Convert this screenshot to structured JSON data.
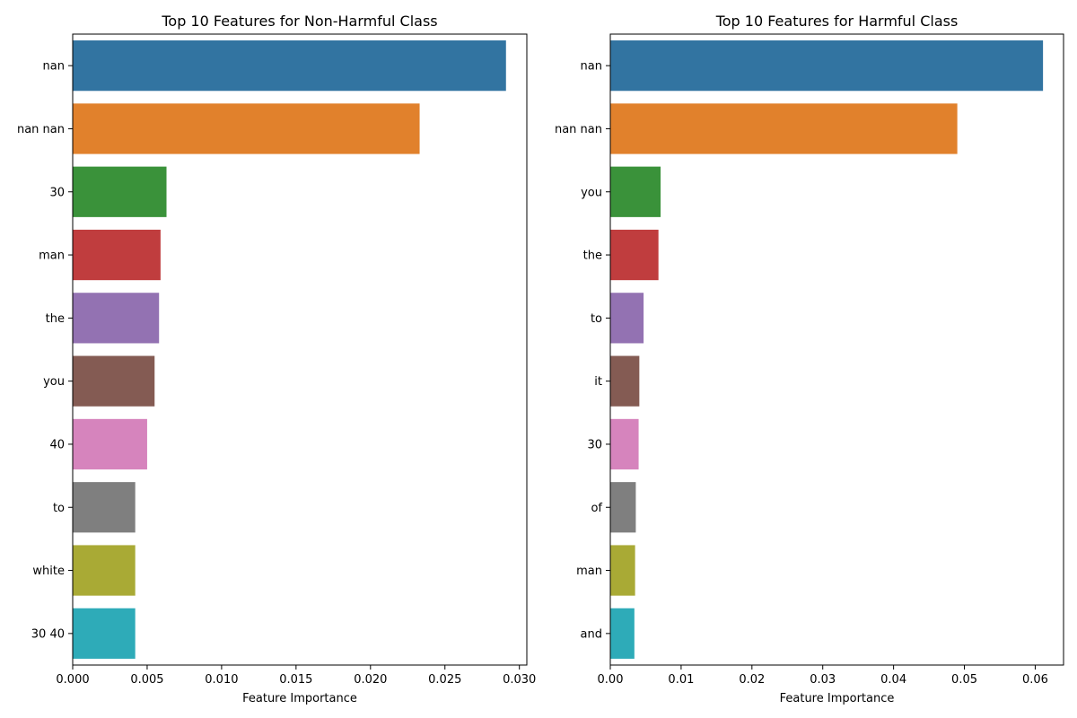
{
  "chart_data": [
    {
      "type": "bar",
      "orientation": "horizontal",
      "title": "Top 10 Features for Non-Harmful Class",
      "xlabel": "Feature Importance",
      "ylabel": "",
      "categories": [
        "nan",
        "nan nan",
        "30",
        "man",
        "the",
        "you",
        "40",
        "to",
        "white",
        "30 40"
      ],
      "values": [
        0.0291,
        0.0233,
        0.0063,
        0.0059,
        0.0058,
        0.0055,
        0.005,
        0.0042,
        0.0042,
        0.0042
      ],
      "xlim": [
        0,
        0.0305
      ],
      "xticks": [
        "0.000",
        "0.005",
        "0.010",
        "0.015",
        "0.020",
        "0.025",
        "0.030"
      ],
      "xtick_values": [
        0,
        0.005,
        0.01,
        0.015,
        0.02,
        0.025,
        0.03
      ],
      "colors": [
        "#3274a1",
        "#e1812c",
        "#3a923a",
        "#c03d3e",
        "#9372b2",
        "#845b53",
        "#d684bd",
        "#7f7f7f",
        "#a9aa35",
        "#2eabb8"
      ],
      "grid": false
    },
    {
      "type": "bar",
      "orientation": "horizontal",
      "title": "Top 10 Features for Harmful Class",
      "xlabel": "Feature Importance",
      "ylabel": "",
      "categories": [
        "nan",
        "nan nan",
        "you",
        "the",
        "to",
        "it",
        "30",
        "of",
        "man",
        "and"
      ],
      "values": [
        0.0611,
        0.049,
        0.0071,
        0.0068,
        0.0047,
        0.0041,
        0.004,
        0.0036,
        0.0035,
        0.0034
      ],
      "xlim": [
        0,
        0.064
      ],
      "xticks": [
        "0.00",
        "0.01",
        "0.02",
        "0.03",
        "0.04",
        "0.05",
        "0.06"
      ],
      "xtick_values": [
        0,
        0.01,
        0.02,
        0.03,
        0.04,
        0.05,
        0.06
      ],
      "colors": [
        "#3274a1",
        "#e1812c",
        "#3a923a",
        "#c03d3e",
        "#9372b2",
        "#845b53",
        "#d684bd",
        "#7f7f7f",
        "#a9aa35",
        "#2eabb8"
      ],
      "grid": false
    }
  ]
}
